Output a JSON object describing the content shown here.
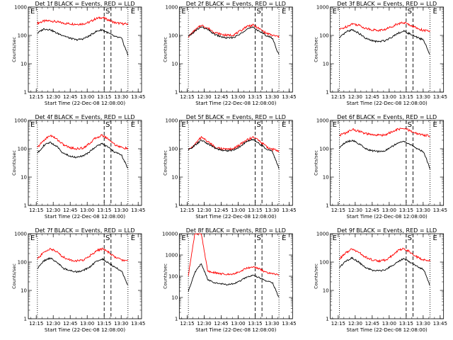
{
  "figure": {
    "background": "#ffffff",
    "colors": {
      "events": "#000000",
      "lld": "#ff0000",
      "frame": "#000000"
    }
  },
  "chart_data": [
    {
      "type": "line",
      "title": "Det 1f BLACK = Events, RED = LLD",
      "xlabel": "Start Time (22-Dec-08 12:08:00)",
      "ylabel": "Counts/sec",
      "yscale": "log",
      "ylim": [
        1,
        1000
      ],
      "yticks": [
        "1",
        "10",
        "100",
        "1000"
      ],
      "xticks": [
        "12:15",
        "12:30",
        "12:45",
        "13:00",
        "13:15",
        "13:30",
        "13:45"
      ],
      "markers": [
        "E",
        "S",
        "E"
      ],
      "grid": false,
      "series": [
        {
          "color": "#ff0000",
          "values": [
            270,
            320,
            330,
            300,
            270,
            260,
            250,
            255,
            290,
            390,
            430,
            350,
            280,
            260,
            250
          ]
        },
        {
          "color": "#000000",
          "values": [
            120,
            170,
            160,
            120,
            100,
            80,
            70,
            75,
            95,
            135,
            160,
            120,
            90,
            80,
            20
          ]
        }
      ]
    },
    {
      "type": "line",
      "title": "Det 2f BLACK = Events, RED = LLD",
      "xlabel": "Start Time (22-Dec-08 12:08:00)",
      "ylabel": "Counts/sec",
      "yscale": "log",
      "ylim": [
        1,
        1000
      ],
      "yticks": [
        "1",
        "10",
        "100",
        "1000"
      ],
      "xticks": [
        "12:15",
        "12:30",
        "12:45",
        "13:00",
        "13:15",
        "13:30",
        "13:45"
      ],
      "markers": [
        "E",
        "S",
        "E"
      ],
      "grid": false,
      "series": [
        {
          "color": "#ff0000",
          "values": [
            90,
            150,
            230,
            180,
            130,
            110,
            100,
            105,
            140,
            210,
            230,
            170,
            120,
            100,
            90
          ]
        },
        {
          "color": "#000000",
          "values": [
            90,
            140,
            200,
            160,
            110,
            90,
            80,
            85,
            110,
            170,
            190,
            140,
            100,
            80,
            20
          ]
        }
      ]
    },
    {
      "type": "line",
      "title": "Det 3f BLACK = Events, RED = LLD",
      "xlabel": "Start Time (22-Dec-08 12:08:00)",
      "ylabel": "Counts/sec",
      "yscale": "log",
      "ylim": [
        1,
        1000
      ],
      "yticks": [
        "1",
        "10",
        "100",
        "1000"
      ],
      "xticks": [
        "12:15",
        "12:30",
        "12:45",
        "13:00",
        "13:15",
        "13:30",
        "13:45"
      ],
      "markers": [
        "E",
        "S",
        "E"
      ],
      "grid": false,
      "series": [
        {
          "color": "#ff0000",
          "values": [
            160,
            200,
            260,
            230,
            180,
            160,
            150,
            160,
            200,
            260,
            280,
            230,
            180,
            150,
            140
          ]
        },
        {
          "color": "#000000",
          "values": [
            80,
            130,
            160,
            120,
            80,
            65,
            60,
            65,
            85,
            120,
            140,
            110,
            85,
            70,
            20
          ]
        }
      ]
    },
    {
      "type": "line",
      "title": "Det 4f BLACK = Events, RED = LLD",
      "xlabel": "Start Time (22-Dec-08 12:08:00)",
      "ylabel": "Counts/sec",
      "yscale": "log",
      "ylim": [
        1,
        1000
      ],
      "yticks": [
        "1",
        "10",
        "100",
        "1000"
      ],
      "xticks": [
        "12:15",
        "12:30",
        "12:45",
        "13:00",
        "13:15",
        "13:30",
        "13:45"
      ],
      "markers": [
        "E",
        "S",
        "E"
      ],
      "grid": false,
      "series": [
        {
          "color": "#ff0000",
          "values": [
            110,
            200,
            300,
            220,
            140,
            110,
            100,
            105,
            150,
            240,
            300,
            220,
            140,
            110,
            100
          ]
        },
        {
          "color": "#000000",
          "values": [
            70,
            130,
            170,
            120,
            70,
            55,
            50,
            55,
            75,
            120,
            150,
            110,
            75,
            60,
            20
          ]
        }
      ]
    },
    {
      "type": "line",
      "title": "Det 5f BLACK = Events, RED = LLD",
      "xlabel": "Start Time (22-Dec-08 12:08:00)",
      "ylabel": "Counts/sec",
      "yscale": "log",
      "ylim": [
        1,
        1000
      ],
      "yticks": [
        "1",
        "10",
        "100",
        "1000"
      ],
      "xticks": [
        "12:15",
        "12:30",
        "12:45",
        "13:00",
        "13:15",
        "13:30",
        "13:45"
      ],
      "markers": [
        "E",
        "S",
        "E"
      ],
      "grid": false,
      "series": [
        {
          "color": "#ff0000",
          "values": [
            90,
            140,
            260,
            180,
            120,
            100,
            95,
            100,
            140,
            200,
            260,
            190,
            120,
            95,
            85
          ]
        },
        {
          "color": "#000000",
          "values": [
            90,
            130,
            200,
            150,
            110,
            90,
            85,
            90,
            120,
            180,
            210,
            150,
            100,
            80,
            20
          ]
        }
      ]
    },
    {
      "type": "line",
      "title": "Det 6f BLACK = Events, RED = LLD",
      "xlabel": "Start Time (22-Dec-08 12:08:00)",
      "ylabel": "Counts/sec",
      "yscale": "log",
      "ylim": [
        1,
        1000
      ],
      "yticks": [
        "1",
        "10",
        "100",
        "1000"
      ],
      "xticks": [
        "12:15",
        "12:30",
        "12:45",
        "13:00",
        "13:15",
        "13:30",
        "13:45"
      ],
      "markers": [
        "E",
        "S",
        "E"
      ],
      "grid": false,
      "series": [
        {
          "color": "#ff0000",
          "values": [
            300,
            360,
            480,
            420,
            340,
            310,
            300,
            310,
            380,
            480,
            520,
            420,
            340,
            300,
            290
          ]
        },
        {
          "color": "#000000",
          "values": [
            110,
            170,
            200,
            150,
            100,
            85,
            80,
            85,
            115,
            160,
            180,
            140,
            100,
            80,
            20
          ]
        }
      ]
    },
    {
      "type": "line",
      "title": "Det 7f BLACK = Events, RED = LLD",
      "xlabel": "Start Time (22-Dec-08 12:08:00)",
      "ylabel": "Counts/sec",
      "yscale": "log",
      "ylim": [
        1,
        1000
      ],
      "yticks": [
        "1",
        "10",
        "100",
        "1000"
      ],
      "xticks": [
        "12:15",
        "12:30",
        "12:45",
        "13:00",
        "13:15",
        "13:30",
        "13:45"
      ],
      "markers": [
        "E",
        "S",
        "E"
      ],
      "grid": false,
      "series": [
        {
          "color": "#ff0000",
          "values": [
            130,
            220,
            300,
            230,
            150,
            120,
            110,
            115,
            160,
            240,
            300,
            220,
            150,
            120,
            110
          ]
        },
        {
          "color": "#000000",
          "values": [
            60,
            110,
            140,
            100,
            60,
            50,
            45,
            50,
            65,
            100,
            130,
            95,
            65,
            50,
            15
          ]
        }
      ]
    },
    {
      "type": "line",
      "title": "Det 8f BLACK = Events, RED = LLD",
      "xlabel": "Start Time (22-Dec-08 12:08:00)",
      "ylabel": "Counts/sec",
      "yscale": "log",
      "ylim": [
        1,
        10000
      ],
      "yticks": [
        "1",
        "10",
        "100",
        "1000",
        "10000"
      ],
      "xticks": [
        "12:15",
        "12:30",
        "12:45",
        "13:00",
        "13:15",
        "13:30",
        "13:45"
      ],
      "markers": [
        "E",
        "S",
        "E"
      ],
      "grid": false,
      "series": [
        {
          "color": "#ff0000",
          "values": [
            110,
            10000,
            10000,
            170,
            150,
            130,
            125,
            130,
            170,
            240,
            280,
            220,
            150,
            130,
            120
          ]
        },
        {
          "color": "#000000",
          "values": [
            20,
            150,
            400,
            70,
            50,
            45,
            40,
            45,
            60,
            90,
            110,
            85,
            60,
            50,
            10
          ]
        }
      ]
    },
    {
      "type": "line",
      "title": "Det 9f BLACK = Events, RED = LLD",
      "xlabel": "Start Time (22-Dec-08 12:08:00)",
      "ylabel": "Counts/sec",
      "yscale": "log",
      "ylim": [
        1,
        1000
      ],
      "yticks": [
        "1",
        "10",
        "100",
        "1000"
      ],
      "xticks": [
        "12:15",
        "12:30",
        "12:45",
        "13:00",
        "13:15",
        "13:30",
        "13:45"
      ],
      "markers": [
        "E",
        "S",
        "E"
      ],
      "grid": false,
      "series": [
        {
          "color": "#ff0000",
          "values": [
            130,
            210,
            290,
            220,
            150,
            120,
            110,
            115,
            160,
            250,
            300,
            220,
            150,
            120,
            110
          ]
        },
        {
          "color": "#000000",
          "values": [
            65,
            110,
            140,
            100,
            65,
            52,
            48,
            52,
            70,
            105,
            130,
            95,
            70,
            55,
            15
          ]
        }
      ]
    }
  ]
}
